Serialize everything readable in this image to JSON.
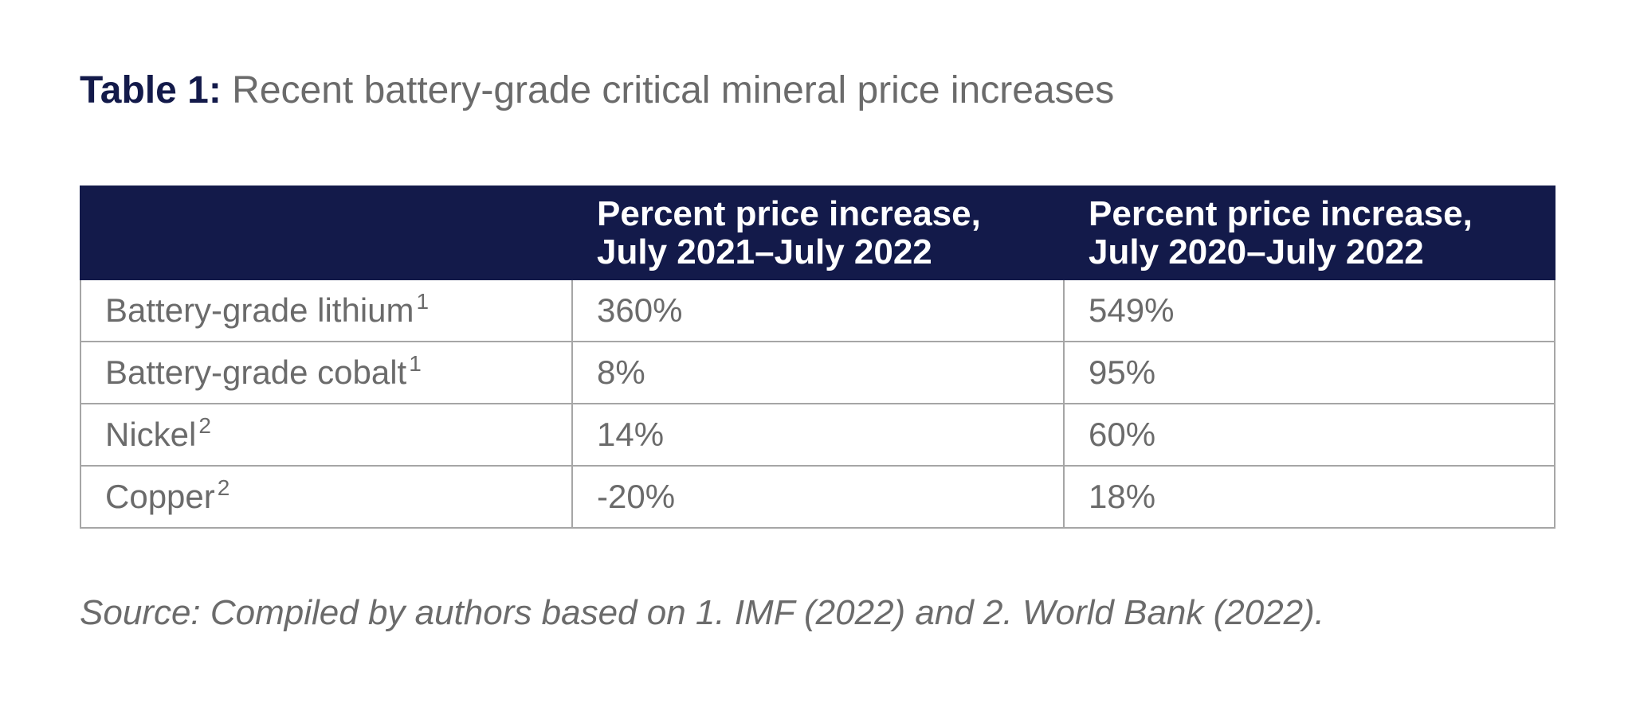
{
  "title": {
    "label": "Table 1:",
    "text": "Recent battery-grade critical mineral price increases"
  },
  "table": {
    "headers": [
      {
        "line1": "",
        "line2": ""
      },
      {
        "line1": "Percent price increase,",
        "line2": "July 2021–July 2022"
      },
      {
        "line1": "Percent price increase,",
        "line2": "July 2020–July 2022"
      }
    ],
    "rows": [
      {
        "mineral": "Battery-grade lithium",
        "ref": "1",
        "pct_2021_2022": "360%",
        "pct_2020_2022": "549%"
      },
      {
        "mineral": "Battery-grade cobalt",
        "ref": "1",
        "pct_2021_2022": "8%",
        "pct_2020_2022": "95%"
      },
      {
        "mineral": "Nickel",
        "ref": "2",
        "pct_2021_2022": "14%",
        "pct_2020_2022": "60%"
      },
      {
        "mineral": "Copper",
        "ref": "2",
        "pct_2021_2022": "-20%",
        "pct_2020_2022": "18%"
      }
    ]
  },
  "source": "Source: Compiled by authors based on 1. IMF (2022) and 2. World Bank (2022).",
  "colors": {
    "header_bg": "#131a4a",
    "label": "#131a4a",
    "text": "#6b6b6b",
    "border": "#a6a6a6"
  }
}
